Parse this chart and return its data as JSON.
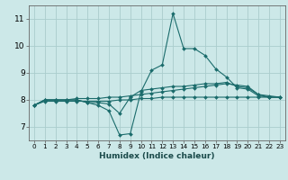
{
  "title": "",
  "xlabel": "Humidex (Indice chaleur)",
  "bg_color": "#cce8e8",
  "grid_color": "#aacccc",
  "line_color": "#1a6b6b",
  "xlim": [
    -0.5,
    23.5
  ],
  "ylim": [
    6.5,
    11.5
  ],
  "xticks": [
    0,
    1,
    2,
    3,
    4,
    5,
    6,
    7,
    8,
    9,
    10,
    11,
    12,
    13,
    14,
    15,
    16,
    17,
    18,
    19,
    20,
    21,
    22,
    23
  ],
  "yticks": [
    7,
    8,
    9,
    10,
    11
  ],
  "series": [
    [
      7.8,
      8.0,
      8.0,
      8.0,
      8.0,
      7.9,
      7.8,
      7.6,
      6.7,
      6.75,
      8.3,
      9.1,
      9.3,
      11.2,
      9.9,
      9.9,
      9.65,
      9.15,
      8.85,
      8.45,
      8.4,
      8.15,
      8.1,
      8.1
    ],
    [
      7.8,
      8.0,
      8.0,
      8.0,
      8.0,
      7.9,
      7.9,
      7.85,
      7.5,
      8.1,
      8.35,
      8.4,
      8.45,
      8.5,
      8.5,
      8.55,
      8.6,
      8.6,
      8.65,
      8.5,
      8.45,
      8.2,
      8.15,
      8.1
    ],
    [
      7.8,
      8.0,
      8.0,
      8.0,
      8.05,
      8.05,
      8.05,
      8.1,
      8.1,
      8.15,
      8.2,
      8.25,
      8.3,
      8.35,
      8.4,
      8.45,
      8.5,
      8.55,
      8.6,
      8.55,
      8.5,
      8.2,
      8.1,
      8.1
    ],
    [
      7.8,
      7.95,
      7.95,
      7.95,
      7.95,
      7.95,
      7.95,
      7.95,
      8.0,
      8.0,
      8.05,
      8.05,
      8.1,
      8.1,
      8.1,
      8.1,
      8.1,
      8.1,
      8.1,
      8.1,
      8.1,
      8.1,
      8.1,
      8.1
    ]
  ]
}
